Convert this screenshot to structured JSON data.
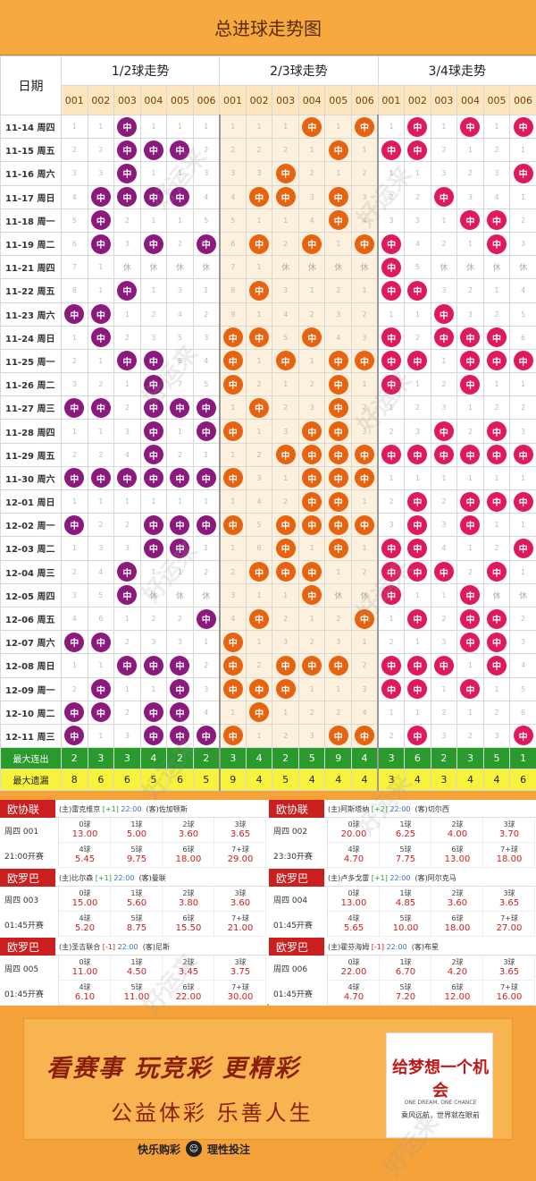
{
  "page_title": "总进球走势图",
  "date_label": "日期",
  "groups": [
    "1/2球走势",
    "2/3球走势",
    "3/4球走势"
  ],
  "sub_columns": [
    "001",
    "002",
    "003",
    "004",
    "005",
    "006"
  ],
  "hit_label": "中",
  "rest_label": "休",
  "rows": [
    {
      "date": "11-14 周四",
      "g1": [
        "1",
        "1",
        "中",
        "1",
        "1",
        "1"
      ],
      "g2": [
        "1",
        "1",
        "1",
        "中",
        "1",
        "中"
      ],
      "g3": [
        "1",
        "中",
        "1",
        "中",
        "1",
        "中"
      ]
    },
    {
      "date": "11-15 周五",
      "g1": [
        "2",
        "2",
        "中",
        "中",
        "中",
        "2"
      ],
      "g2": [
        "2",
        "2",
        "2",
        "1",
        "中",
        "1"
      ],
      "g3": [
        "中",
        "中",
        "2",
        "1",
        "2",
        "1"
      ]
    },
    {
      "date": "11-16 周六",
      "g1": [
        "3",
        "3",
        "中",
        "1",
        "1",
        "3"
      ],
      "g2": [
        "3",
        "3",
        "中",
        "2",
        "1",
        "2"
      ],
      "g3": [
        "1",
        "1",
        "3",
        "2",
        "3",
        "中"
      ]
    },
    {
      "date": "11-17 周日",
      "g1": [
        "4",
        "中",
        "中",
        "中",
        "中",
        "4"
      ],
      "g2": [
        "4",
        "中",
        "中",
        "3",
        "中",
        "3"
      ],
      "g3": [
        "2",
        "2",
        "中",
        "3",
        "4",
        "1"
      ]
    },
    {
      "date": "11-18 周一",
      "g1": [
        "5",
        "中",
        "2",
        "1",
        "1",
        "5"
      ],
      "g2": [
        "5",
        "1",
        "1",
        "4",
        "中",
        "4"
      ],
      "g3": [
        "3",
        "3",
        "1",
        "中",
        "中",
        "2"
      ]
    },
    {
      "date": "11-19 周二",
      "g1": [
        "6",
        "中",
        "3",
        "中",
        "2",
        "中"
      ],
      "g2": [
        "6",
        "中",
        "2",
        "中",
        "1",
        "中"
      ],
      "g3": [
        "中",
        "4",
        "2",
        "1",
        "中",
        "3"
      ]
    },
    {
      "date": "11-21 周四",
      "g1": [
        "7",
        "1",
        "休",
        "休",
        "休",
        "休"
      ],
      "g2": [
        "7",
        "1",
        "休",
        "休",
        "休",
        "休"
      ],
      "g3": [
        "中",
        "5",
        "休",
        "休",
        "休",
        "休"
      ]
    },
    {
      "date": "11-22 周五",
      "g1": [
        "8",
        "1",
        "中",
        "1",
        "3",
        "1"
      ],
      "g2": [
        "8",
        "中",
        "3",
        "1",
        "2",
        "1"
      ],
      "g3": [
        "中",
        "中",
        "3",
        "2",
        "1",
        "4"
      ]
    },
    {
      "date": "11-23 周六",
      "g1": [
        "中",
        "中",
        "1",
        "2",
        "4",
        "2"
      ],
      "g2": [
        "9",
        "1",
        "4",
        "2",
        "3",
        "2"
      ],
      "g3": [
        "1",
        "1",
        "中",
        "3",
        "2",
        "5"
      ]
    },
    {
      "date": "11-24 周日",
      "g1": [
        "1",
        "中",
        "2",
        "3",
        "5",
        "3"
      ],
      "g2": [
        "中",
        "中",
        "5",
        "中",
        "4",
        "3"
      ],
      "g3": [
        "中",
        "2",
        "中",
        "中",
        "中",
        "6"
      ]
    },
    {
      "date": "11-25 周一",
      "g1": [
        "2",
        "1",
        "中",
        "中",
        "6",
        "4"
      ],
      "g2": [
        "中",
        "1",
        "中",
        "1",
        "中",
        "中"
      ],
      "g3": [
        "中",
        "中",
        "1",
        "中",
        "中",
        "中"
      ]
    },
    {
      "date": "11-26 周二",
      "g1": [
        "3",
        "2",
        "1",
        "中",
        "7",
        "5"
      ],
      "g2": [
        "中",
        "2",
        "1",
        "2",
        "中",
        "1"
      ],
      "g3": [
        "中",
        "1",
        "2",
        "中",
        "1",
        "1"
      ]
    },
    {
      "date": "11-27 周三",
      "g1": [
        "中",
        "中",
        "2",
        "中",
        "中",
        "中"
      ],
      "g2": [
        "1",
        "中",
        "2",
        "3",
        "中",
        "2"
      ],
      "g3": [
        "1",
        "2",
        "3",
        "1",
        "2",
        "2"
      ]
    },
    {
      "date": "11-28 周四",
      "g1": [
        "1",
        "1",
        "3",
        "中",
        "1",
        "中"
      ],
      "g2": [
        "中",
        "1",
        "3",
        "中",
        "中",
        "3"
      ],
      "g3": [
        "2",
        "3",
        "中",
        "2",
        "中",
        "3"
      ]
    },
    {
      "date": "11-29 周五",
      "g1": [
        "2",
        "2",
        "4",
        "中",
        "2",
        "1"
      ],
      "g2": [
        "1",
        "2",
        "中",
        "中",
        "中",
        "中"
      ],
      "g3": [
        "中",
        "中",
        "中",
        "中",
        "中",
        "中"
      ]
    },
    {
      "date": "11-30 周六",
      "g1": [
        "中",
        "中",
        "中",
        "中",
        "中",
        "中"
      ],
      "g2": [
        "中",
        "3",
        "1",
        "中",
        "中",
        "中"
      ],
      "g3": [
        "1",
        "1",
        "1",
        "1",
        "1",
        "1"
      ]
    },
    {
      "date": "12-01 周日",
      "g1": [
        "1",
        "1",
        "1",
        "1",
        "1",
        "1"
      ],
      "g2": [
        "1",
        "4",
        "2",
        "中",
        "中",
        "1"
      ],
      "g3": [
        "2",
        "中",
        "2",
        "中",
        "中",
        "中"
      ]
    },
    {
      "date": "12-02 周一",
      "g1": [
        "中",
        "2",
        "2",
        "中",
        "中",
        "中"
      ],
      "g2": [
        "中",
        "5",
        "中",
        "中",
        "中",
        "中"
      ],
      "g3": [
        "3",
        "中",
        "3",
        "中",
        "1",
        "1"
      ]
    },
    {
      "date": "12-03 周二",
      "g1": [
        "1",
        "3",
        "3",
        "中",
        "中",
        "1"
      ],
      "g2": [
        "1",
        "6",
        "中",
        "1",
        "中",
        "1"
      ],
      "g3": [
        "中",
        "中",
        "4",
        "1",
        "2",
        "中"
      ]
    },
    {
      "date": "12-04 周三",
      "g1": [
        "2",
        "4",
        "中",
        "1",
        "1",
        "2"
      ],
      "g2": [
        "2",
        "中",
        "中",
        "中",
        "1",
        "2"
      ],
      "g3": [
        "中",
        "中",
        "中",
        "2",
        "中",
        "1"
      ]
    },
    {
      "date": "12-05 周四",
      "g1": [
        "3",
        "5",
        "中",
        "休",
        "休",
        "休"
      ],
      "g2": [
        "3",
        "1",
        "1",
        "中",
        "休",
        "休"
      ],
      "g3": [
        "中",
        "1",
        "1",
        "中",
        "休",
        "休"
      ]
    },
    {
      "date": "12-06 周五",
      "g1": [
        "4",
        "6",
        "1",
        "2",
        "2",
        "中"
      ],
      "g2": [
        "4",
        "中",
        "2",
        "1",
        "2",
        "中"
      ],
      "g3": [
        "1",
        "中",
        "2",
        "中",
        "中",
        "2"
      ]
    },
    {
      "date": "12-07 周六",
      "g1": [
        "中",
        "中",
        "2",
        "3",
        "3",
        "1"
      ],
      "g2": [
        "中",
        "1",
        "3",
        "2",
        "3",
        "1"
      ],
      "g3": [
        "2",
        "1",
        "3",
        "中",
        "中",
        "3"
      ]
    },
    {
      "date": "12-08 周日",
      "g1": [
        "1",
        "1",
        "中",
        "中",
        "中",
        "2"
      ],
      "g2": [
        "中",
        "2",
        "中",
        "中",
        "中",
        "2"
      ],
      "g3": [
        "中",
        "中",
        "中",
        "1",
        "中",
        "4"
      ]
    },
    {
      "date": "12-09 周一",
      "g1": [
        "2",
        "中",
        "1",
        "1",
        "中",
        "3"
      ],
      "g2": [
        "中",
        "中",
        "中",
        "1",
        "1",
        "3"
      ],
      "g3": [
        "中",
        "中",
        "1",
        "中",
        "1",
        "5"
      ]
    },
    {
      "date": "12-10 周二",
      "g1": [
        "中",
        "中",
        "2",
        "中",
        "中",
        "4"
      ],
      "g2": [
        "1",
        "中",
        "1",
        "2",
        "2",
        "4"
      ],
      "g3": [
        "1",
        "1",
        "2",
        "1",
        "2",
        "6"
      ]
    },
    {
      "date": "12-11 周三",
      "g1": [
        "中",
        "1",
        "3",
        "中",
        "中",
        "中"
      ],
      "g2": [
        "中",
        "1",
        "2",
        "3",
        "中",
        "中"
      ],
      "g3": [
        "2",
        "中",
        "3",
        "2",
        "3",
        "中"
      ]
    }
  ],
  "stats": {
    "max_streak_label": "最大连出",
    "max_streak": [
      "2",
      "3",
      "3",
      "4",
      "2",
      "2",
      "3",
      "4",
      "2",
      "5",
      "9",
      "4",
      "3",
      "6",
      "2",
      "3",
      "5",
      "1"
    ],
    "max_miss_label": "最大遗漏",
    "max_miss": [
      "8",
      "6",
      "6",
      "5",
      "6",
      "5",
      "9",
      "4",
      "5",
      "4",
      "4",
      "4",
      "3",
      "4",
      "3",
      "4",
      "4",
      "6"
    ]
  },
  "matches": [
    {
      "league": "欧协联",
      "home": "(主)雷克维京",
      "hc": "[+1]",
      "hc_color": "green",
      "time": "22:00",
      "away": "(客)佐加顿斯",
      "num": "周四 001",
      "kick": "21:00开赛",
      "odds": [
        [
          "0球",
          "13.00"
        ],
        [
          "1球",
          "5.00"
        ],
        [
          "2球",
          "3.60"
        ],
        [
          "3球",
          "3.65"
        ],
        [
          "4球",
          "5.45"
        ],
        [
          "5球",
          "9.75"
        ],
        [
          "6球",
          "18.00"
        ],
        [
          "7+球",
          "29.00"
        ]
      ]
    },
    {
      "league": "欧协联",
      "home": "(主)阿斯塔纳",
      "hc": "[+2]",
      "hc_color": "green",
      "time": "22:00",
      "away": "(客)切尔西",
      "num": "周四 002",
      "kick": "23:30开赛",
      "odds": [
        [
          "0球",
          "20.00"
        ],
        [
          "1球",
          "6.25"
        ],
        [
          "2球",
          "4.00"
        ],
        [
          "3球",
          "3.70"
        ],
        [
          "4球",
          "4.70"
        ],
        [
          "5球",
          "7.75"
        ],
        [
          "6球",
          "13.00"
        ],
        [
          "7+球",
          "18.00"
        ]
      ]
    },
    {
      "league": "欧罗巴",
      "home": "(主)比尔森",
      "hc": "[+1]",
      "hc_color": "green",
      "time": "22:00",
      "away": "(客)曼联",
      "num": "周四 003",
      "kick": "01:45开赛",
      "odds": [
        [
          "0球",
          "15.00"
        ],
        [
          "1球",
          "5.60"
        ],
        [
          "2球",
          "3.80"
        ],
        [
          "3球",
          "3.60"
        ],
        [
          "4球",
          "5.20"
        ],
        [
          "5球",
          "8.75"
        ],
        [
          "6球",
          "15.50"
        ],
        [
          "7+球",
          "21.00"
        ]
      ]
    },
    {
      "league": "欧罗巴",
      "home": "(主)卢多戈雷",
      "hc": "[+1]",
      "hc_color": "green",
      "time": "22:00",
      "away": "(客)阿尔克马",
      "num": "周四 004",
      "kick": "01:45开赛",
      "odds": [
        [
          "0球",
          "13.00"
        ],
        [
          "1球",
          "4.85"
        ],
        [
          "2球",
          "3.60"
        ],
        [
          "3球",
          "3.65"
        ],
        [
          "4球",
          "5.65"
        ],
        [
          "5球",
          "10.00"
        ],
        [
          "6球",
          "18.00"
        ],
        [
          "7+球",
          "27.00"
        ]
      ]
    },
    {
      "league": "欧罗巴",
      "home": "(主)圣吉联合",
      "hc": "[-1]",
      "hc_color": "red",
      "time": "22:00",
      "away": "(客)尼斯",
      "num": "周四 005",
      "kick": "01:45开赛",
      "odds": [
        [
          "0球",
          "11.00"
        ],
        [
          "1球",
          "4.50"
        ],
        [
          "2球",
          "3.45"
        ],
        [
          "3球",
          "3.75"
        ],
        [
          "4球",
          "6.10"
        ],
        [
          "5球",
          "11.00"
        ],
        [
          "6球",
          "22.00"
        ],
        [
          "7+球",
          "30.00"
        ]
      ]
    },
    {
      "league": "欧罗巴",
      "home": "(主)霍芬海姆",
      "hc": "[-1]",
      "hc_color": "red",
      "time": "22:00",
      "away": "(客)布星",
      "num": "周四 006",
      "kick": "01:45开赛",
      "odds": [
        [
          "0球",
          "22.00"
        ],
        [
          "1球",
          "6.70"
        ],
        [
          "2球",
          "4.20"
        ],
        [
          "3球",
          "3.65"
        ],
        [
          "4球",
          "4.70"
        ],
        [
          "5球",
          "7.20"
        ],
        [
          "6球",
          "12.00"
        ],
        [
          "7+球",
          "16.00"
        ]
      ]
    }
  ],
  "banner": {
    "slogan1": "看赛事 玩竞彩 更精彩",
    "slogan2": "公益体彩 乐善人生",
    "dream_title": "给梦想一个机会",
    "dream_en": "ONE DREAM, ONE CHANCE",
    "dream_sub": "乘风远航，世界就在眼前",
    "footer_left": "快乐购彩",
    "footer_right": "理性投注"
  },
  "watermark": "好运来",
  "colors": {
    "group1_ball": "#8c1a7e",
    "group2_ball": "#e8630f",
    "group3_ball": "#e0195e",
    "streak_row": "#2a9a2c",
    "miss_row": "#f7f23c",
    "league_badge": "#cc1f1f"
  }
}
